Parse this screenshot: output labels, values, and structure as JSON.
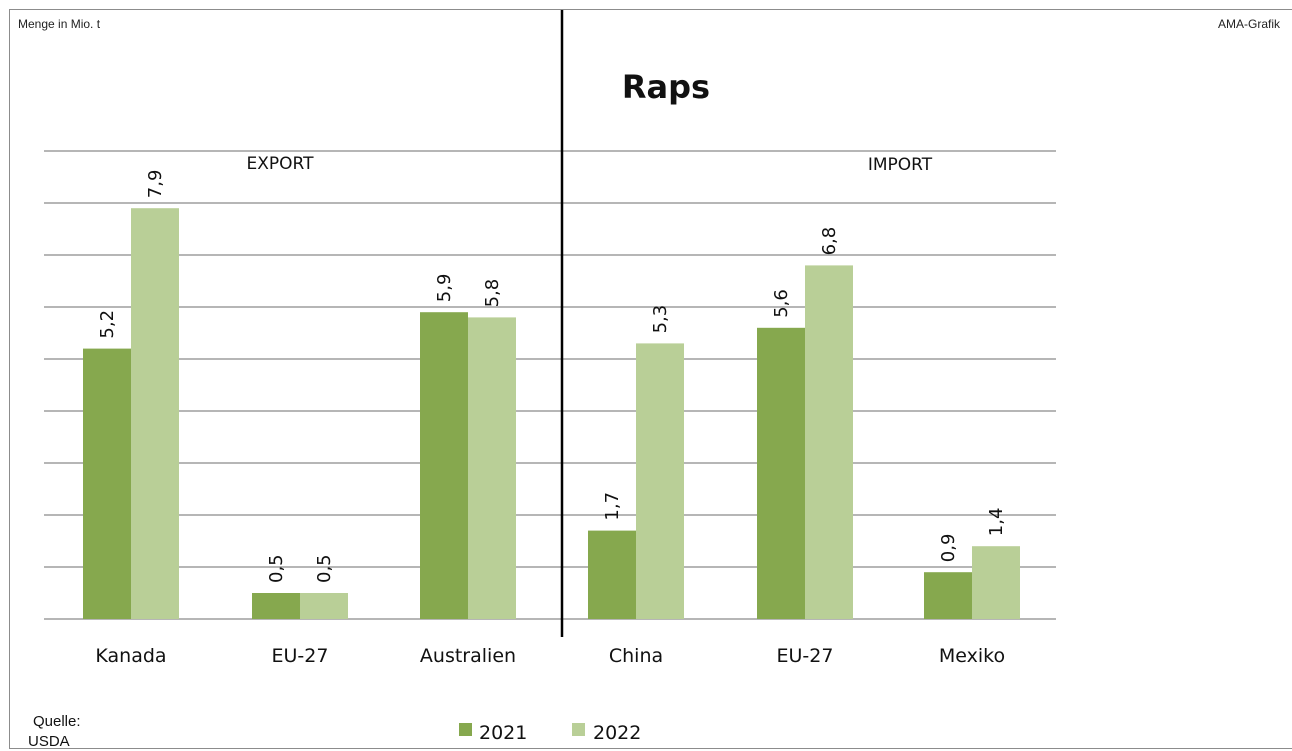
{
  "header": {
    "unit": "Menge in Mio. t",
    "brand": "AMA-Grafik"
  },
  "source": {
    "line1": "Quelle:",
    "line2": "USDA"
  },
  "colors": {
    "series_2021": "#86a84e",
    "series_2022": "#b9cf97",
    "grid": "#8a8a8a"
  },
  "chart_data": {
    "type": "bar",
    "title": "Raps",
    "sections": [
      "EXPORT",
      "IMPORT"
    ],
    "categories": [
      "Kanada",
      "EU-27",
      "Australien",
      "China",
      "EU-27",
      "Mexiko"
    ],
    "series": [
      {
        "name": "2021",
        "values": [
          5.2,
          0.5,
          5.9,
          1.7,
          5.6,
          0.9
        ],
        "labels": [
          "5,2",
          "0,5",
          "5,9",
          "1,7",
          "5,6",
          "0,9"
        ]
      },
      {
        "name": "2022",
        "values": [
          7.9,
          0.5,
          5.8,
          5.3,
          6.8,
          1.4
        ],
        "labels": [
          "7,9",
          "0,5",
          "5,8",
          "5,3",
          "6,8",
          "1,4"
        ]
      }
    ],
    "ylim": [
      0,
      9
    ],
    "grid": true,
    "legend_position": "bottom-center"
  }
}
